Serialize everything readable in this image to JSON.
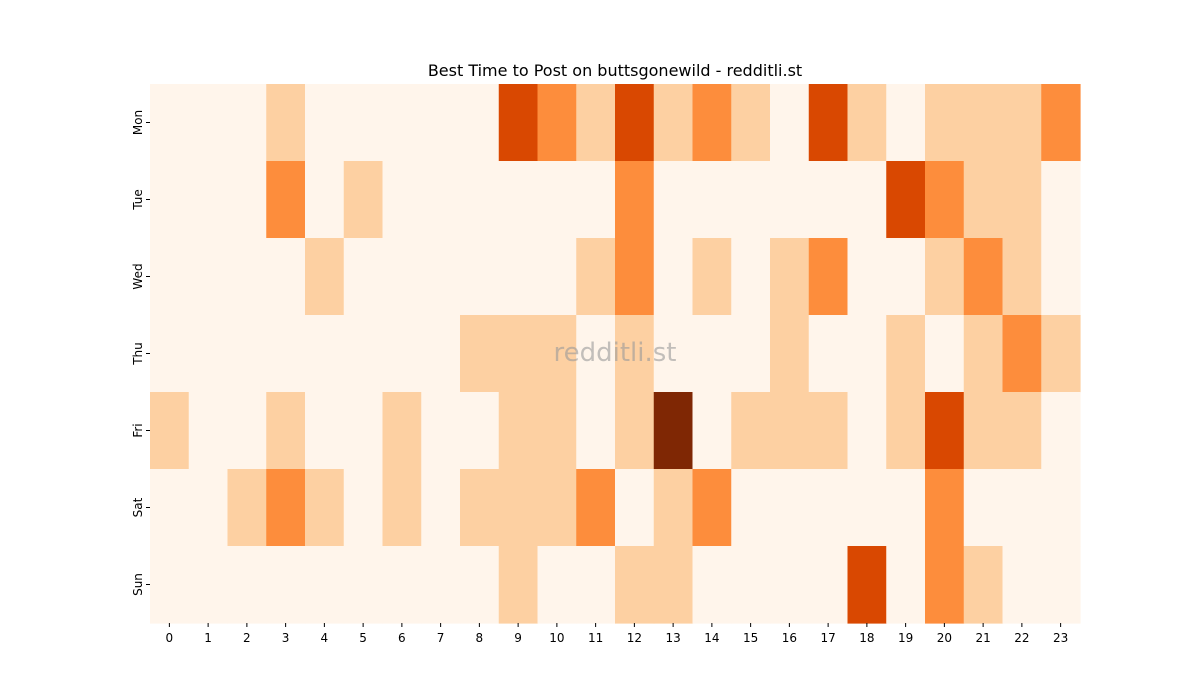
{
  "chart_data": {
    "type": "heatmap",
    "title": "Best Time to Post on buttsgonewild - redditli.st",
    "watermark": "redditli.st",
    "x_labels": [
      "0",
      "1",
      "2",
      "3",
      "4",
      "5",
      "6",
      "7",
      "8",
      "9",
      "10",
      "11",
      "12",
      "13",
      "14",
      "15",
      "16",
      "17",
      "18",
      "19",
      "20",
      "21",
      "22",
      "23"
    ],
    "y_labels": [
      "Mon",
      "Tue",
      "Wed",
      "Thu",
      "Fri",
      "Sat",
      "Sun"
    ],
    "values": [
      [
        0,
        0,
        0,
        1,
        0,
        0,
        0,
        0,
        0,
        3,
        2,
        1,
        3,
        1,
        2,
        1,
        0,
        3,
        1,
        0,
        1,
        1,
        1,
        2
      ],
      [
        0,
        0,
        0,
        2,
        0,
        1,
        0,
        0,
        0,
        0,
        0,
        0,
        2,
        0,
        0,
        0,
        0,
        0,
        0,
        3,
        2,
        1,
        1,
        0
      ],
      [
        0,
        0,
        0,
        0,
        1,
        0,
        0,
        0,
        0,
        0,
        0,
        1,
        2,
        0,
        1,
        0,
        1,
        2,
        0,
        0,
        1,
        2,
        1,
        0
      ],
      [
        0,
        0,
        0,
        0,
        0,
        0,
        0,
        0,
        1,
        1,
        1,
        0,
        1,
        0,
        0,
        0,
        1,
        0,
        0,
        1,
        0,
        1,
        2,
        1
      ],
      [
        1,
        0,
        0,
        1,
        0,
        0,
        1,
        0,
        0,
        1,
        1,
        0,
        1,
        4,
        0,
        1,
        1,
        1,
        0,
        1,
        3,
        1,
        1,
        0
      ],
      [
        0,
        0,
        1,
        2,
        1,
        0,
        1,
        0,
        1,
        1,
        1,
        2,
        0,
        1,
        2,
        0,
        0,
        0,
        0,
        0,
        2,
        0,
        0,
        0
      ],
      [
        0,
        0,
        0,
        0,
        0,
        0,
        0,
        0,
        0,
        1,
        0,
        0,
        1,
        1,
        0,
        0,
        0,
        0,
        3,
        0,
        2,
        1,
        0,
        0
      ]
    ],
    "level_colors": [
      "#fff5eb",
      "#fdd0a2",
      "#fd8d3c",
      "#d94801",
      "#7f2704"
    ]
  }
}
